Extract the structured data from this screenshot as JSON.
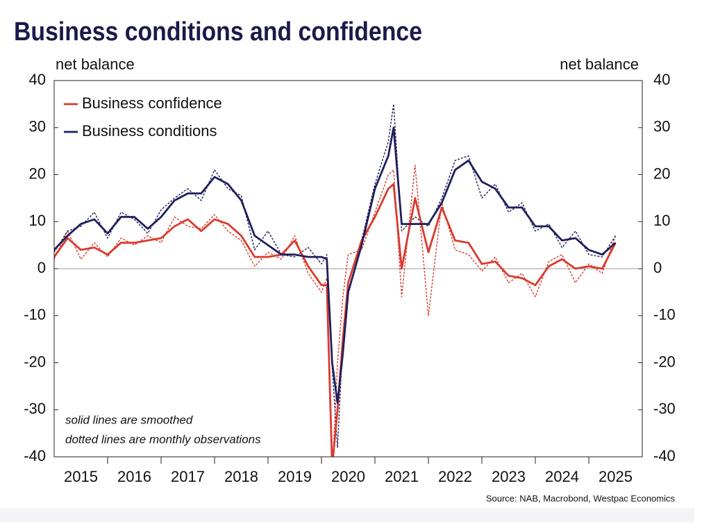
{
  "chart_data": {
    "type": "line",
    "title": "Business conditions and confidence",
    "ylabel": "net balance",
    "y2label": "net balance",
    "annotations": [
      "solid lines are smoothed",
      "dotted lines are monthly observations"
    ],
    "source": "Source: NAB, Macrobond, Westpac Economics",
    "x": [
      2015,
      2015.25,
      2015.5,
      2015.75,
      2016,
      2016.25,
      2016.5,
      2016.75,
      2017,
      2017.25,
      2017.5,
      2017.75,
      2018,
      2018.25,
      2018.5,
      2018.75,
      2019,
      2019.25,
      2019.5,
      2019.75,
      2020,
      2020.1,
      2020.2,
      2020.3,
      2020.4,
      2020.5,
      2020.75,
      2021,
      2021.25,
      2021.35,
      2021.5,
      2021.75,
      2022,
      2022.25,
      2022.5,
      2022.75,
      2023,
      2023.25,
      2023.5,
      2023.75,
      2024,
      2024.25,
      2024.5,
      2024.75,
      2025,
      2025.25,
      2025.5
    ],
    "xlim": [
      2015,
      2026
    ],
    "xticks": [
      2015,
      2016,
      2017,
      2018,
      2019,
      2020,
      2021,
      2022,
      2023,
      2024,
      2025
    ],
    "ylim": [
      -40,
      40
    ],
    "yticks": [
      -40,
      -30,
      -20,
      -10,
      0,
      10,
      20,
      30,
      40
    ],
    "y2lim": [
      -40,
      40
    ],
    "y2ticks": [
      -40,
      -30,
      -20,
      -10,
      0,
      10,
      20,
      30,
      40
    ],
    "legend": "upper left",
    "series": [
      {
        "name": "Business confidence",
        "color": "#d93a2f",
        "values": [
          2.5,
          6.5,
          4,
          4.5,
          3,
          5.5,
          5.5,
          6,
          6.5,
          9,
          10.5,
          8,
          10.5,
          9.5,
          7,
          2.5,
          2.5,
          3,
          6,
          0.5,
          -3.5,
          -3.5,
          -42,
          -30,
          -15,
          -3,
          6,
          11,
          17,
          18,
          0,
          15,
          3.5,
          13,
          6,
          5.5,
          1,
          1.5,
          -1.5,
          -2,
          -3.5,
          0.5,
          2,
          0,
          0.5,
          0,
          5.5
        ]
      },
      {
        "name": "Business conditions",
        "color": "#1f1f5c",
        "values": [
          4,
          7,
          9.5,
          10.5,
          7.5,
          11,
          11,
          8.5,
          11,
          14.5,
          16,
          16,
          19.5,
          18,
          14.5,
          7,
          5,
          3,
          3,
          2.5,
          2.5,
          2,
          -20,
          -28.5,
          -18,
          -5,
          5,
          17,
          24,
          30,
          9.5,
          9.5,
          9.5,
          14,
          21,
          23,
          18.5,
          17,
          13,
          13,
          9,
          9,
          6,
          6.5,
          4,
          3,
          5.5
        ]
      },
      {
        "color": "#d93a2f",
        "dashed": true,
        "values": [
          2,
          8,
          2,
          5.5,
          2.5,
          6.5,
          5,
          7,
          5.5,
          11,
          9,
          8.5,
          11.5,
          8,
          6,
          0.5,
          3.5,
          2,
          7,
          -1,
          -5,
          -2,
          -44,
          -20,
          -6,
          3,
          4,
          12,
          20,
          21,
          -6,
          22,
          -10,
          14,
          4,
          3,
          -0.5,
          2.5,
          -3,
          -1,
          -6,
          1.5,
          3,
          -3,
          1,
          -1,
          7
        ]
      },
      {
        "color": "#1f1f5c",
        "dashed": true,
        "values": [
          3.5,
          8,
          9,
          12,
          6.5,
          12,
          10.5,
          7.5,
          12.5,
          15,
          17,
          14.5,
          21,
          17,
          15.5,
          4,
          8,
          3,
          2.5,
          4.5,
          1,
          3,
          -21,
          -38,
          -15,
          -3,
          6,
          18,
          27,
          35,
          8,
          11,
          9,
          15,
          23,
          24,
          15,
          18,
          12,
          14,
          8,
          9.5,
          4.5,
          8,
          3,
          2.5,
          7
        ]
      }
    ]
  }
}
